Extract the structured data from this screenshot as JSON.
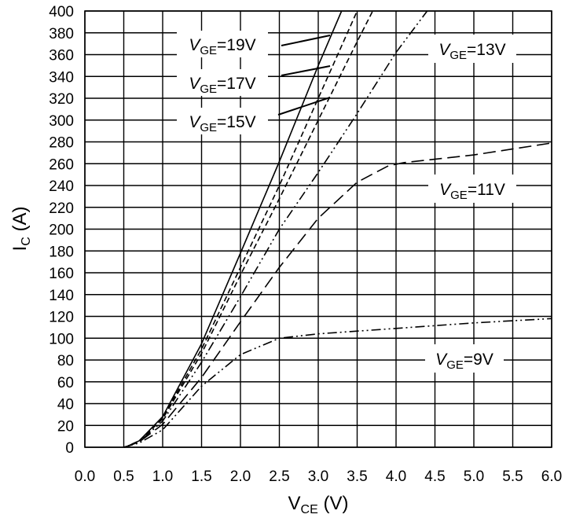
{
  "chart_data": {
    "type": "line",
    "title": "",
    "xlabel": {
      "main": "V",
      "sub": "CE",
      "unit": " (V)"
    },
    "ylabel": {
      "main": "I",
      "sub": "C",
      "unit": " (A)"
    },
    "xlim": [
      0,
      6
    ],
    "ylim": [
      0,
      400
    ],
    "x_ticks": [
      "0.0",
      "0.5",
      "1.0",
      "1.5",
      "2.0",
      "2.5",
      "3.0",
      "3.5",
      "4.0",
      "4.5",
      "5.0",
      "5.5",
      "6.0"
    ],
    "y_ticks": [
      "0",
      "20",
      "40",
      "60",
      "80",
      "100",
      "120",
      "140",
      "160",
      "180",
      "200",
      "220",
      "240",
      "260",
      "280",
      "300",
      "320",
      "340",
      "360",
      "380",
      "400"
    ],
    "grid": true,
    "series": [
      {
        "name": "VGE=19V",
        "label_main": "V",
        "label_sub": "GE",
        "label_value": "=19V",
        "dash": "solid",
        "x": [
          0.5,
          0.55,
          0.7,
          1.0,
          1.5,
          2.0,
          2.5,
          3.0,
          3.3
        ],
        "y": [
          0,
          1,
          6,
          28,
          95,
          178,
          262,
          350,
          400
        ]
      },
      {
        "name": "VGE=17V",
        "label_main": "V",
        "label_sub": "GE",
        "label_value": "=17V",
        "dash": "short-dash",
        "x": [
          0.5,
          0.55,
          0.7,
          1.0,
          1.5,
          2.0,
          2.5,
          3.0,
          3.5
        ],
        "y": [
          0,
          1,
          6,
          27,
          90,
          165,
          240,
          320,
          400
        ]
      },
      {
        "name": "VGE=15V",
        "label_main": "V",
        "label_sub": "GE",
        "label_value": "=15V",
        "dash": "short-dash",
        "x": [
          0.5,
          0.55,
          0.7,
          1.0,
          1.5,
          2.0,
          2.5,
          3.0,
          3.5,
          3.7
        ],
        "y": [
          0,
          1,
          6,
          26,
          86,
          158,
          228,
          300,
          372,
          400
        ]
      },
      {
        "name": "VGE=13V",
        "label_main": "V",
        "label_sub": "GE",
        "label_value": "=13V",
        "dash": "dash-dot-dot",
        "x": [
          0.5,
          0.55,
          0.7,
          1.0,
          1.5,
          2.0,
          2.5,
          3.0,
          3.5,
          4.0,
          4.4
        ],
        "y": [
          0,
          1,
          5,
          24,
          78,
          138,
          200,
          252,
          306,
          362,
          400
        ]
      },
      {
        "name": "VGE=11V",
        "label_main": "V",
        "label_sub": "GE",
        "label_value": "=11V",
        "dash": "long-dash",
        "x": [
          0.5,
          0.55,
          0.7,
          1.0,
          1.5,
          2.0,
          2.5,
          3.0,
          3.5,
          3.9,
          4.1,
          5.0,
          6.0
        ],
        "y": [
          0,
          1,
          5,
          21,
          64,
          115,
          165,
          210,
          243,
          258,
          261,
          268,
          279
        ]
      },
      {
        "name": "VGE=9V",
        "label_main": "V",
        "label_sub": "GE",
        "label_value": "=9V",
        "dash": "dash-dot-dot",
        "x": [
          0.5,
          0.55,
          0.7,
          1.0,
          1.5,
          2.0,
          2.5,
          3.0,
          4.0,
          5.0,
          6.0
        ],
        "y": [
          0,
          1,
          4,
          16,
          56,
          85,
          100,
          104,
          109,
          114,
          118
        ]
      }
    ]
  }
}
